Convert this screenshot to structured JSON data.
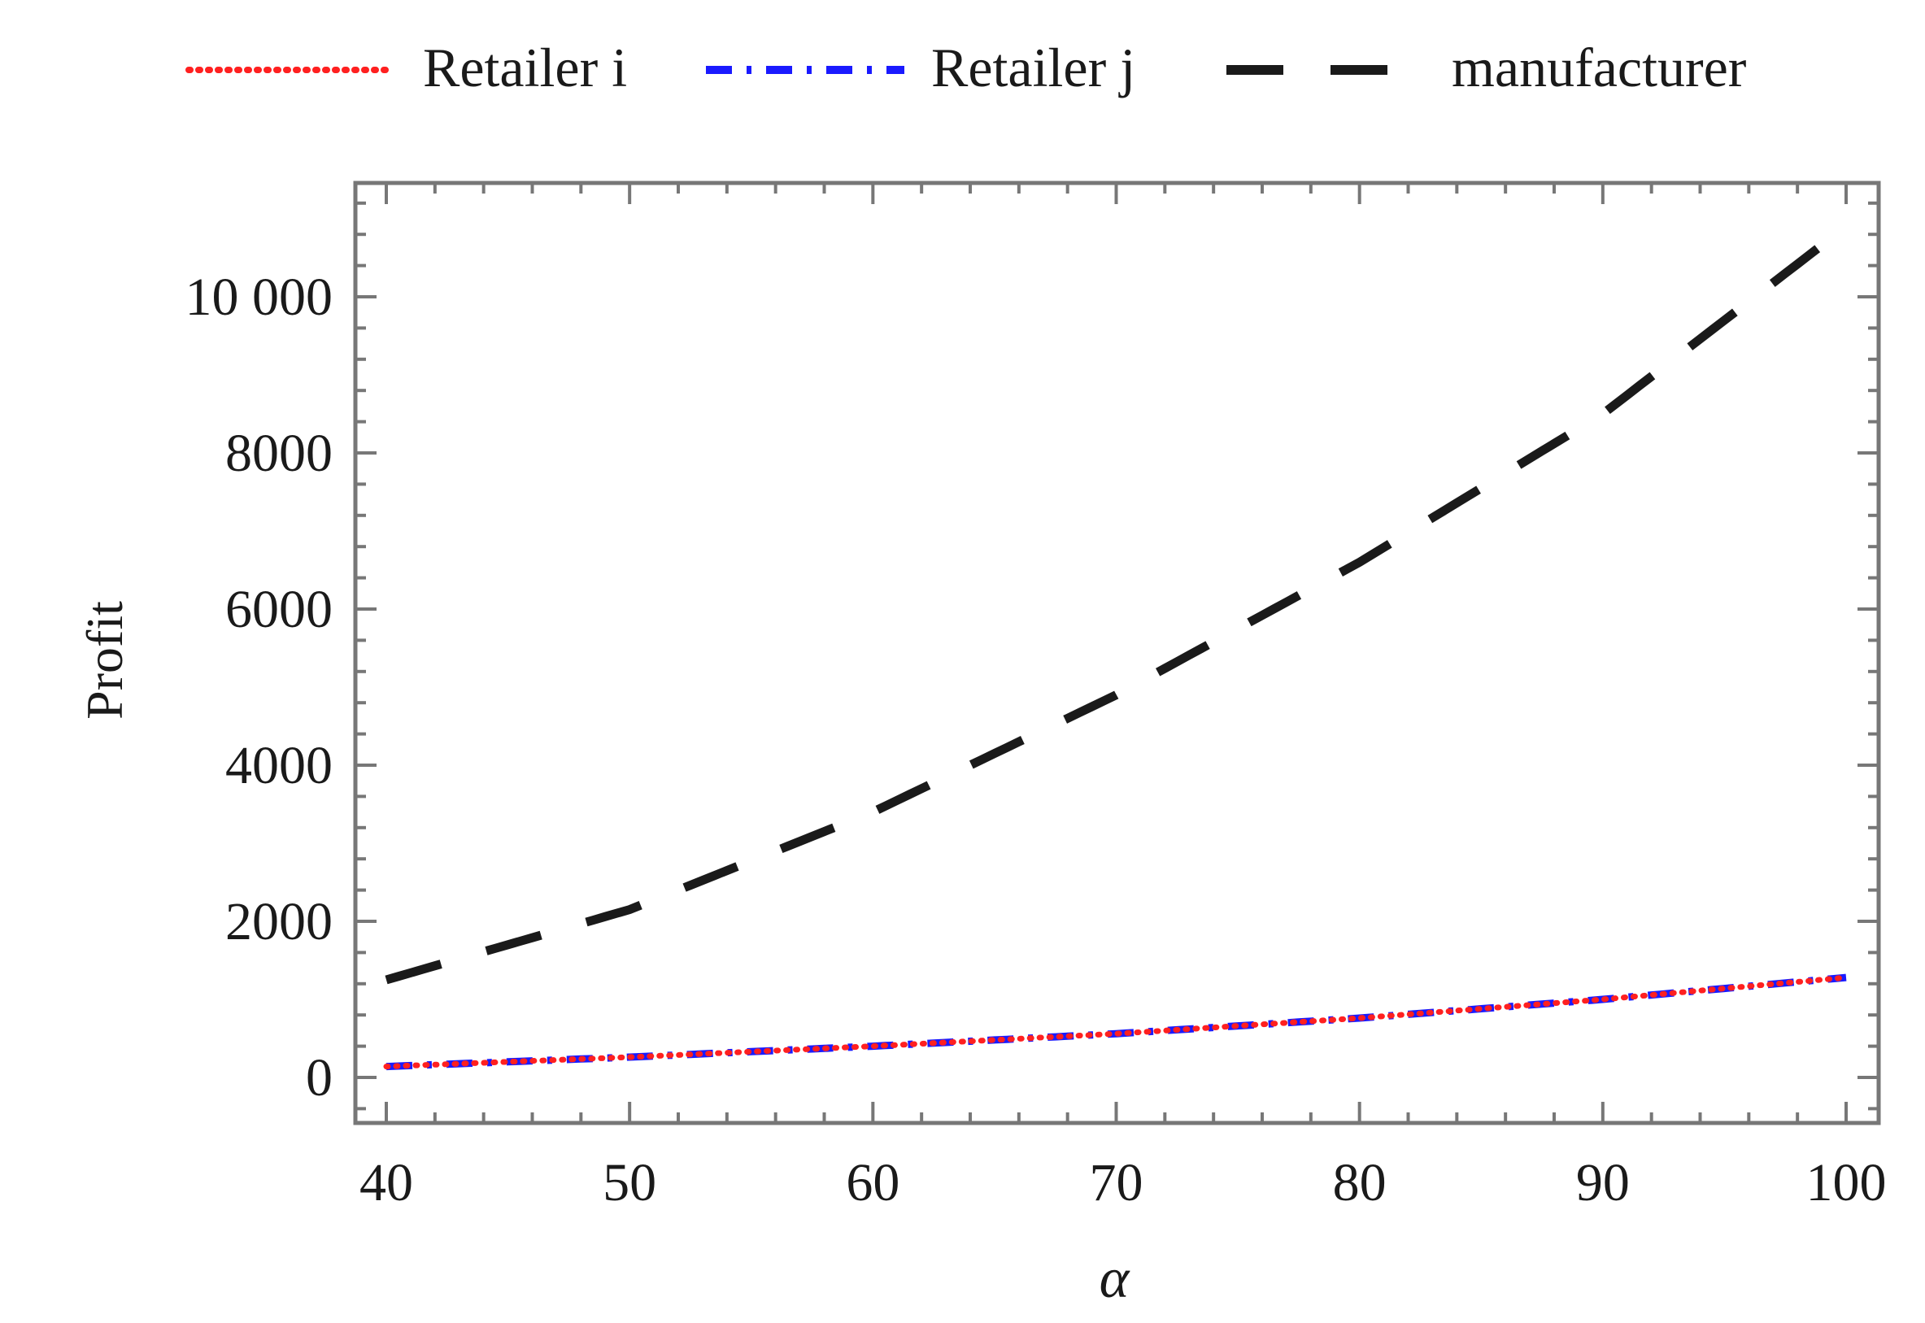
{
  "chart_data": {
    "type": "line",
    "xlabel": "α",
    "ylabel": "Profit",
    "xlim": [
      40,
      100
    ],
    "ylim": [
      -600,
      11400
    ],
    "xticks": [
      40,
      50,
      60,
      70,
      80,
      90,
      100
    ],
    "xtick_labels": [
      "40",
      "50",
      "60",
      "70",
      "80",
      "90",
      "100"
    ],
    "yticks": [
      0,
      2000,
      4000,
      6000,
      8000,
      10000
    ],
    "ytick_labels": [
      "0",
      "2000",
      "4000",
      "6000",
      "8000",
      "10 000"
    ],
    "grid": false,
    "legend_position": "top",
    "x": [
      40,
      50,
      60,
      70,
      80,
      90,
      100
    ],
    "series": [
      {
        "name": "Retailer i",
        "color": "#ff2020",
        "style": "dotted",
        "values": [
          140,
          260,
          400,
          560,
          760,
          1000,
          1280
        ]
      },
      {
        "name": "Retailer j",
        "color": "#1a1aff",
        "style": "dashdot",
        "values": [
          140,
          260,
          400,
          560,
          760,
          1000,
          1280
        ]
      },
      {
        "name": "manufacturer",
        "color": "#1a1a1a",
        "style": "dashed",
        "values": [
          1250,
          2150,
          3400,
          4900,
          6600,
          8500,
          10900
        ]
      }
    ]
  }
}
